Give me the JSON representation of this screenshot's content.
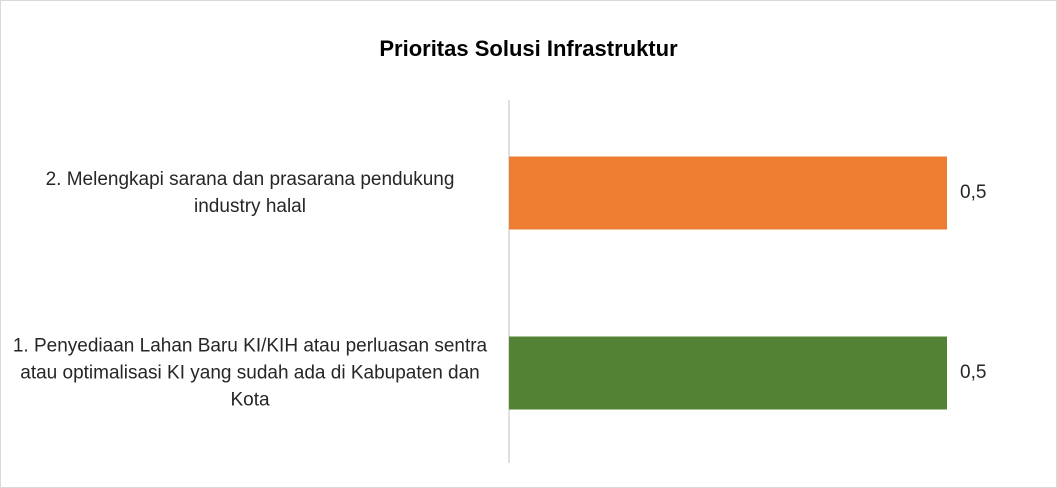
{
  "chart_data": {
    "type": "barh",
    "title": "Prioritas Solusi Infrastruktur",
    "categories": [
      "1. Penyediaan Lahan Baru KI/KIH atau perluasan sentra atau optimalisasi KI yang sudah ada di Kabupaten dan Kota",
      "2. Melengkapi sarana dan prasarana pendukung industry halal"
    ],
    "values": [
      0.5,
      0.5
    ],
    "value_labels": [
      "0,5",
      "0,5"
    ],
    "colors": [
      "#548235",
      "#ed7d31"
    ],
    "xlim": [
      0,
      0.6
    ]
  }
}
